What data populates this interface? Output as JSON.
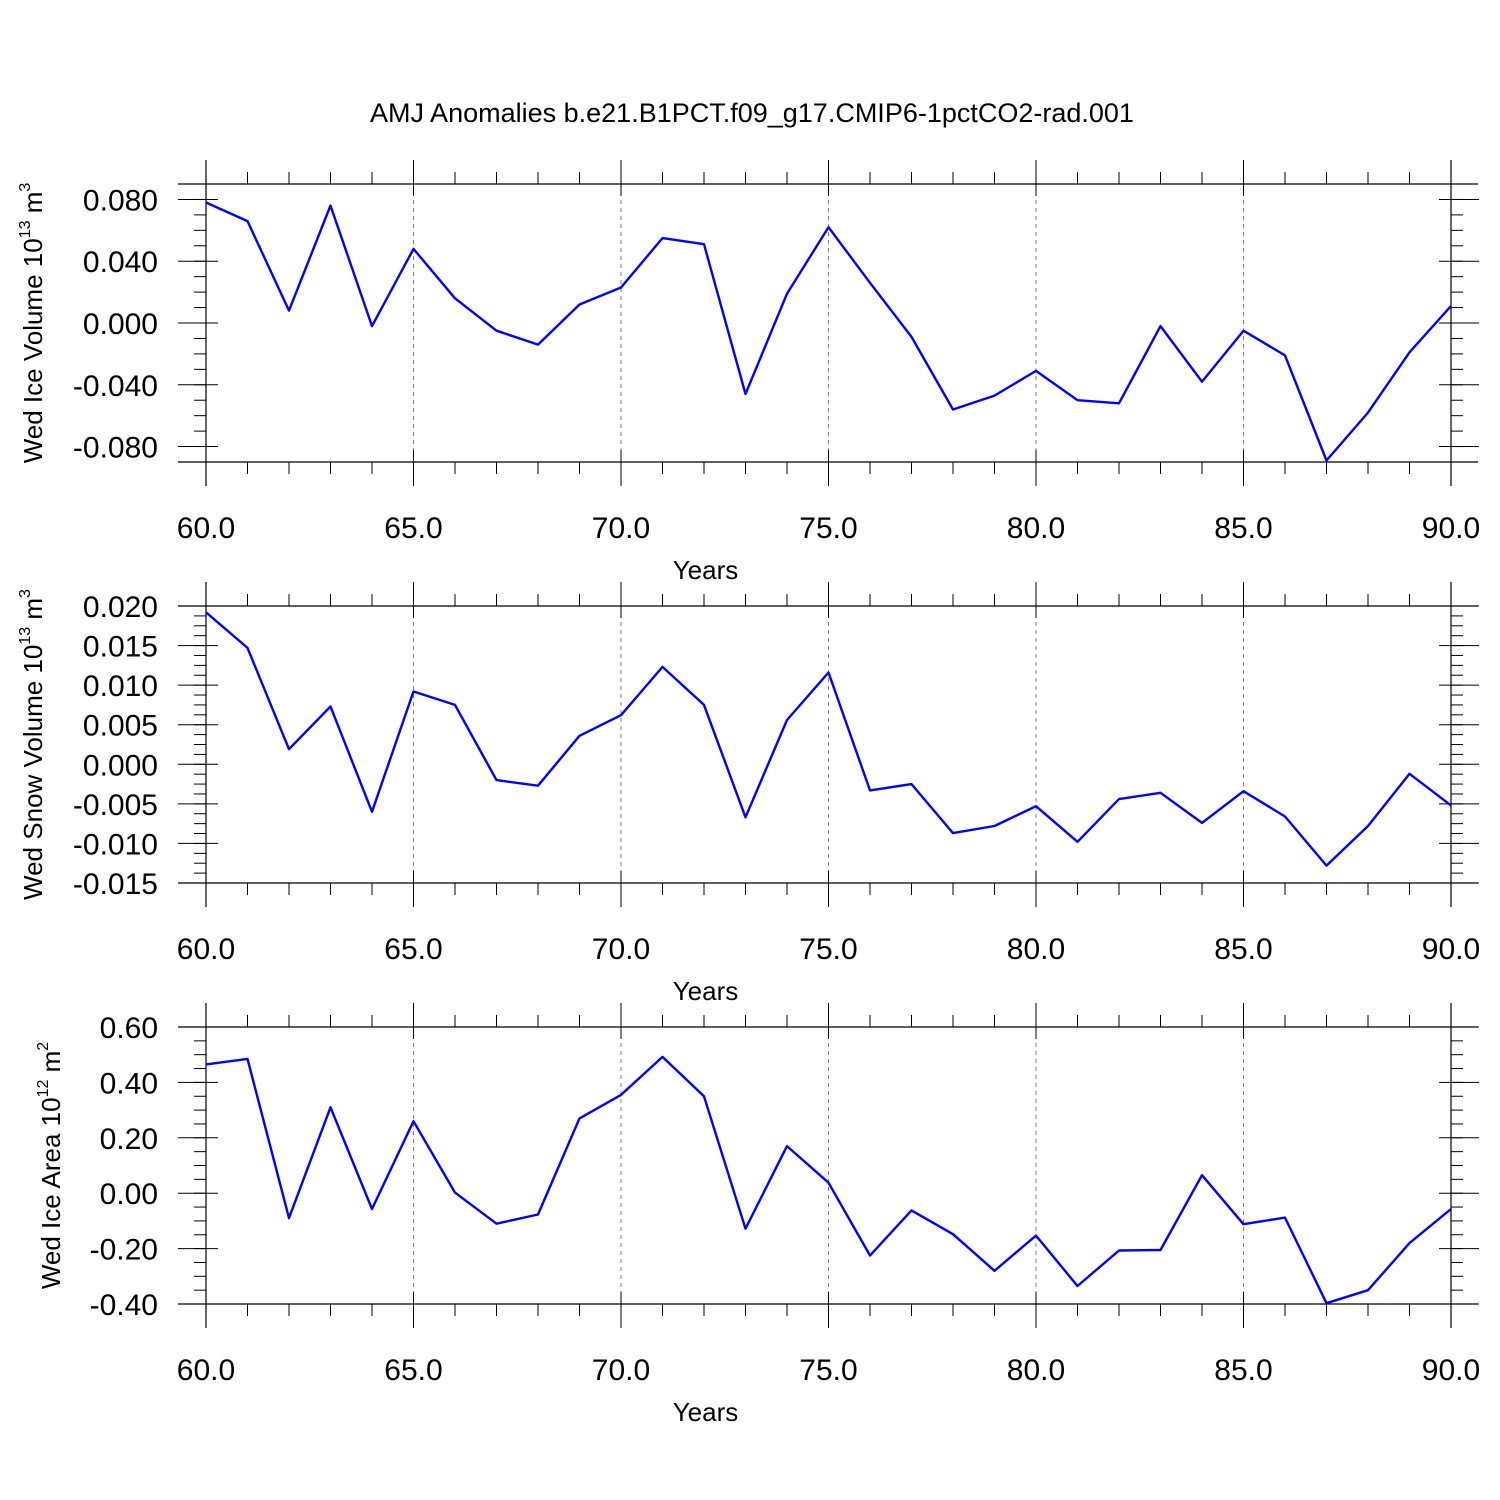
{
  "title": "AMJ Anomalies b.e21.B1PCT.f09_g17.CMIP6-1pctCO2-rad.001",
  "colors": {
    "series": "#0000ff",
    "grid": "#808080",
    "axis": "#000000"
  },
  "chart_data": [
    {
      "type": "line",
      "ylabel": {
        "text": "Wed Ice Volume 10",
        "exp": "13",
        "unit": " m",
        "unit_exp": "3"
      },
      "xlabel": "Years",
      "xlim": [
        60,
        90
      ],
      "ylim": [
        -0.09,
        0.09
      ],
      "xticks": [
        60,
        65,
        70,
        75,
        80,
        85,
        90
      ],
      "xtick_labels": [
        "60.0",
        "65.0",
        "70.0",
        "75.0",
        "80.0",
        "85.0",
        "90.0"
      ],
      "yticks": [
        0.08,
        0.04,
        0.0,
        -0.04,
        -0.08
      ],
      "ytick_labels": [
        "0.080",
        "0.040",
        "0.000",
        "-0.040",
        "-0.080"
      ],
      "grid_x": [
        65,
        70,
        75,
        80,
        85
      ],
      "x": [
        60,
        61,
        62,
        63,
        64,
        65,
        66,
        67,
        68,
        69,
        70,
        71,
        72,
        73,
        74,
        75,
        76,
        77,
        78,
        79,
        80,
        81,
        82,
        83,
        84,
        85,
        86,
        87,
        88,
        89,
        90
      ],
      "values": [
        0.078,
        0.066,
        0.008,
        0.076,
        -0.002,
        0.048,
        0.016,
        -0.005,
        -0.014,
        0.012,
        0.023,
        0.055,
        0.051,
        -0.046,
        0.019,
        0.062,
        0.026,
        -0.009,
        -0.056,
        -0.047,
        -0.031,
        -0.05,
        -0.052,
        -0.002,
        -0.038,
        -0.005,
        -0.021,
        -0.089,
        -0.058,
        -0.019,
        0.011
      ]
    },
    {
      "type": "line",
      "ylabel": {
        "text": "Wed Snow Volume 10",
        "exp": "13",
        "unit": " m",
        "unit_exp": "3"
      },
      "xlabel": "Years",
      "xlim": [
        60,
        90
      ],
      "ylim": [
        -0.015,
        0.02
      ],
      "xticks": [
        60,
        65,
        70,
        75,
        80,
        85,
        90
      ],
      "xtick_labels": [
        "60.0",
        "65.0",
        "70.0",
        "75.0",
        "80.0",
        "85.0",
        "90.0"
      ],
      "yticks": [
        0.02,
        0.015,
        0.01,
        0.005,
        0.0,
        -0.005,
        -0.01,
        -0.015
      ],
      "ytick_labels": [
        "0.020",
        "0.015",
        "0.010",
        "0.005",
        "0.000",
        "-0.005",
        "-0.010",
        "-0.015"
      ],
      "grid_x": [
        65,
        70,
        75,
        80,
        85
      ],
      "x": [
        60,
        61,
        62,
        63,
        64,
        65,
        66,
        67,
        68,
        69,
        70,
        71,
        72,
        73,
        74,
        75,
        76,
        77,
        78,
        79,
        80,
        81,
        82,
        83,
        84,
        85,
        86,
        87,
        88,
        89,
        90
      ],
      "values": [
        0.0192,
        0.0147,
        0.0019,
        0.0073,
        -0.006,
        0.0092,
        0.0075,
        -0.002,
        -0.0027,
        0.0036,
        0.0062,
        0.0123,
        0.0075,
        -0.0067,
        0.0056,
        0.0116,
        -0.0033,
        -0.0025,
        -0.0087,
        -0.0078,
        -0.0053,
        -0.0098,
        -0.0044,
        -0.0036,
        -0.0074,
        -0.0034,
        -0.0066,
        -0.0128,
        -0.0078,
        -0.0012,
        -0.0052
      ]
    },
    {
      "type": "line",
      "ylabel": {
        "text": "Wed Ice Area 10",
        "exp": "12",
        "unit": " m",
        "unit_exp": "2"
      },
      "xlabel": "Years",
      "xlim": [
        60,
        90
      ],
      "ylim": [
        -0.4,
        0.6
      ],
      "xticks": [
        60,
        65,
        70,
        75,
        80,
        85,
        90
      ],
      "xtick_labels": [
        "60.0",
        "65.0",
        "70.0",
        "75.0",
        "80.0",
        "85.0",
        "90.0"
      ],
      "yticks": [
        0.6,
        0.4,
        0.2,
        0.0,
        -0.2,
        -0.4
      ],
      "ytick_labels": [
        "0.60",
        "0.40",
        "0.20",
        "0.00",
        "-0.20",
        "-0.40"
      ],
      "grid_x": [
        65,
        70,
        75,
        80,
        85
      ],
      "x": [
        60,
        61,
        62,
        63,
        64,
        65,
        66,
        67,
        68,
        69,
        70,
        71,
        72,
        73,
        74,
        75,
        76,
        77,
        78,
        79,
        80,
        81,
        82,
        83,
        84,
        85,
        86,
        87,
        88,
        89,
        90
      ],
      "values": [
        0.465,
        0.485,
        -0.09,
        0.31,
        -0.057,
        0.26,
        0.002,
        -0.11,
        -0.077,
        0.27,
        0.355,
        0.492,
        0.35,
        -0.128,
        0.17,
        0.038,
        -0.225,
        -0.062,
        -0.148,
        -0.28,
        -0.153,
        -0.335,
        -0.207,
        -0.205,
        0.065,
        -0.112,
        -0.088,
        -0.397,
        -0.35,
        -0.18,
        -0.057
      ]
    }
  ]
}
